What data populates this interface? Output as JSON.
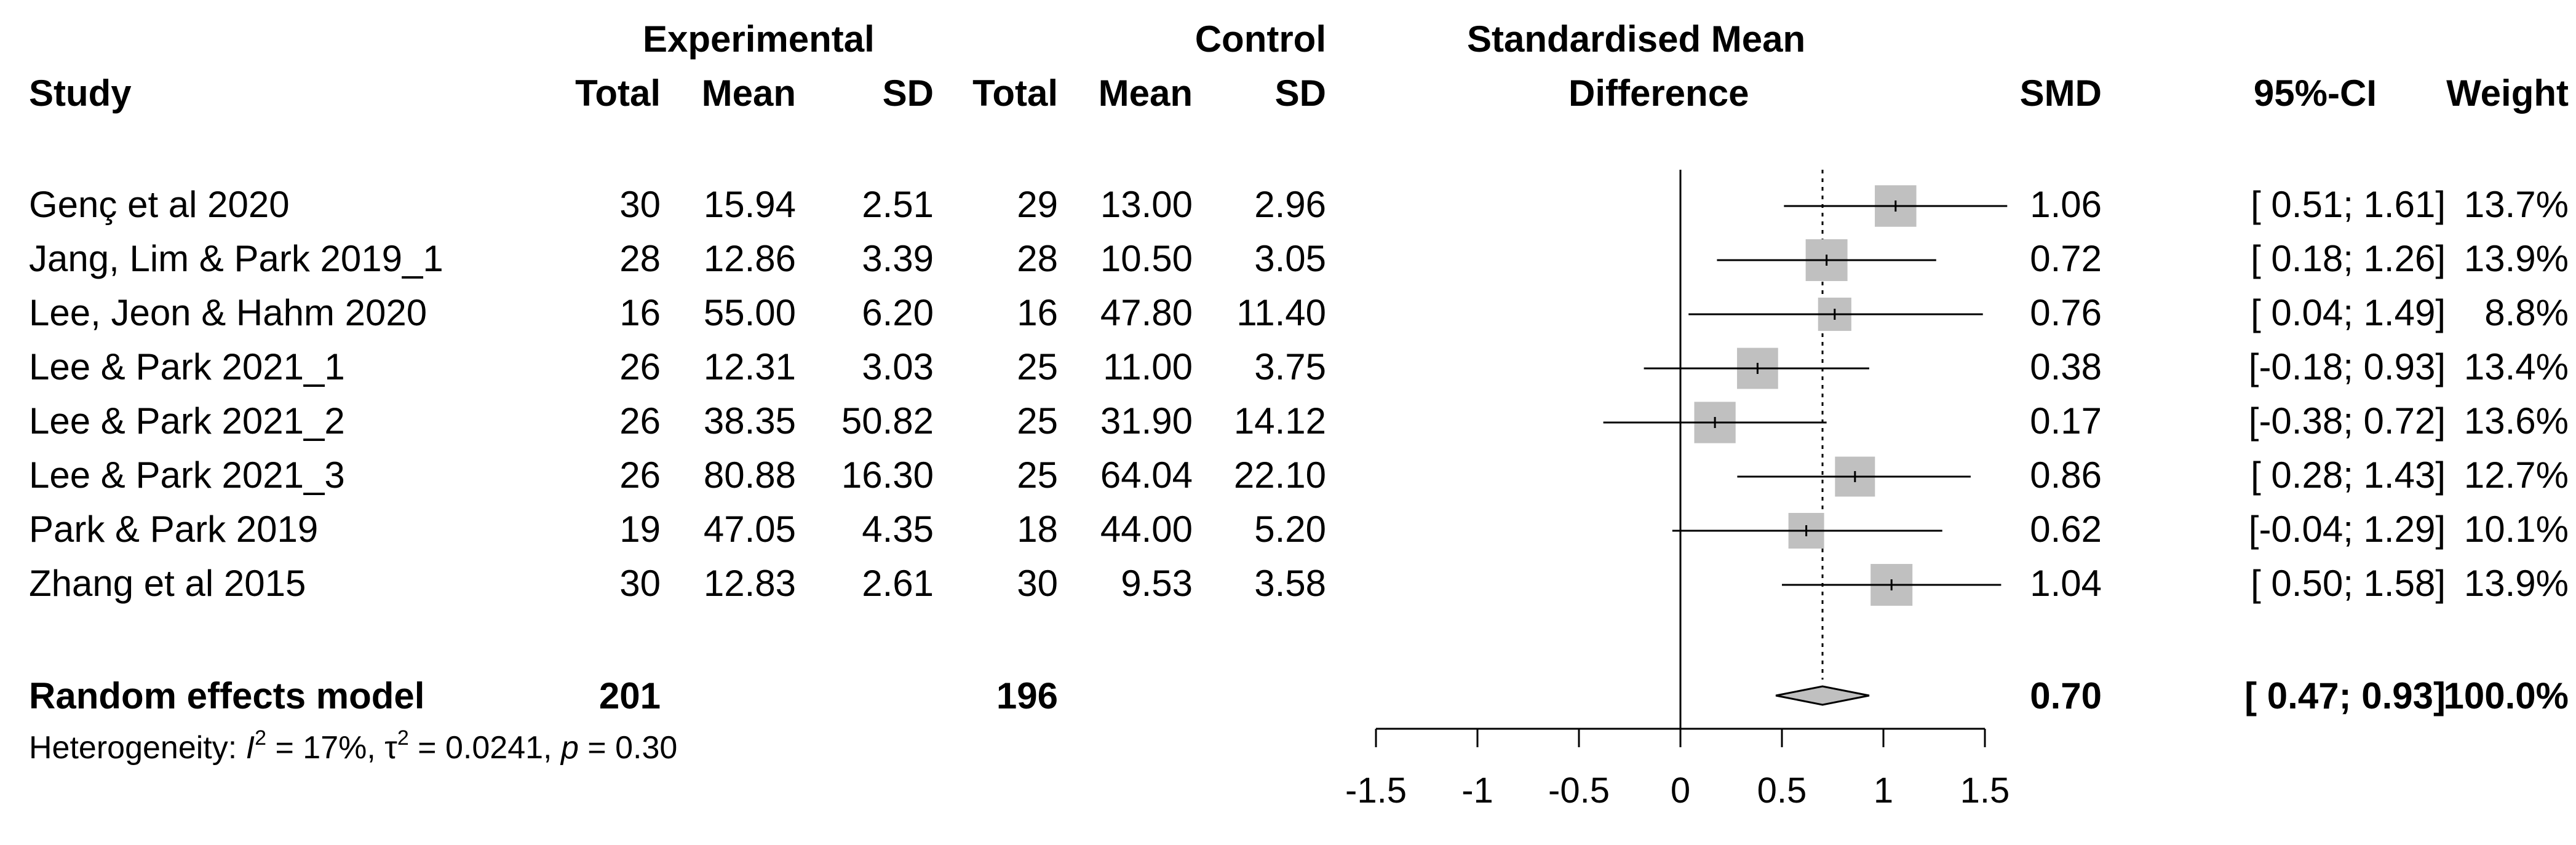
{
  "headers": {
    "experimental": "Experimental",
    "control": "Control",
    "study": "Study",
    "total": "Total",
    "mean": "Mean",
    "sd": "SD",
    "smd_line1": "Standardised Mean",
    "smd_line2": "Difference",
    "smd": "SMD",
    "ci": "95%-CI",
    "weight": "Weight"
  },
  "studies": [
    {
      "name": "Genç et al 2020",
      "e_total": "30",
      "e_mean": "15.94",
      "e_sd": "2.51",
      "c_total": "29",
      "c_mean": "13.00",
      "c_sd": "2.96",
      "smd": "1.06",
      "ci": "[ 0.51; 1.61]",
      "weight": "13.7%"
    },
    {
      "name": "Jang, Lim & Park 2019_1",
      "e_total": "28",
      "e_mean": "12.86",
      "e_sd": "3.39",
      "c_total": "28",
      "c_mean": "10.50",
      "c_sd": "3.05",
      "smd": "0.72",
      "ci": "[ 0.18; 1.26]",
      "weight": "13.9%"
    },
    {
      "name": "Lee, Jeon & Hahm 2020",
      "e_total": "16",
      "e_mean": "55.00",
      "e_sd": "6.20",
      "c_total": "16",
      "c_mean": "47.80",
      "c_sd": "11.40",
      "smd": "0.76",
      "ci": "[ 0.04; 1.49]",
      "weight": "8.8%"
    },
    {
      "name": "Lee & Park 2021_1",
      "e_total": "26",
      "e_mean": "12.31",
      "e_sd": "3.03",
      "c_total": "25",
      "c_mean": "11.00",
      "c_sd": "3.75",
      "smd": "0.38",
      "ci": "[-0.18; 0.93]",
      "weight": "13.4%"
    },
    {
      "name": "Lee & Park 2021_2",
      "e_total": "26",
      "e_mean": "38.35",
      "e_sd": "50.82",
      "c_total": "25",
      "c_mean": "31.90",
      "c_sd": "14.12",
      "smd": "0.17",
      "ci": "[-0.38; 0.72]",
      "weight": "13.6%"
    },
    {
      "name": "Lee & Park 2021_3",
      "e_total": "26",
      "e_mean": "80.88",
      "e_sd": "16.30",
      "c_total": "25",
      "c_mean": "64.04",
      "c_sd": "22.10",
      "smd": "0.86",
      "ci": "[ 0.28; 1.43]",
      "weight": "12.7%"
    },
    {
      "name": "Park & Park 2019",
      "e_total": "19",
      "e_mean": "47.05",
      "e_sd": "4.35",
      "c_total": "18",
      "c_mean": "44.00",
      "c_sd": "5.20",
      "smd": "0.62",
      "ci": "[-0.04; 1.29]",
      "weight": "10.1%"
    },
    {
      "name": "Zhang et al 2015",
      "e_total": "30",
      "e_mean": "12.83",
      "e_sd": "2.61",
      "c_total": "30",
      "c_mean": "9.53",
      "c_sd": "3.58",
      "smd": "1.04",
      "ci": "[ 0.50; 1.58]",
      "weight": "13.9%"
    }
  ],
  "summary": {
    "name": "Random effects model",
    "e_total": "201",
    "c_total": "196",
    "smd": "0.70",
    "ci": "[ 0.47; 0.93]",
    "weight": "100.0%"
  },
  "heterogeneity": {
    "prefix": "Heterogeneity: ",
    "i2_symbol": "I",
    "i2_value": " = 17%, ",
    "tau_symbol": "τ",
    "tau_value": " = 0.0241, ",
    "p_symbol": "p",
    "p_value": " = 0.30",
    "sup": "2"
  },
  "chart_data": {
    "type": "forest",
    "xlim": [
      -1.5,
      1.5
    ],
    "xticks": [
      "-1.5",
      "-1",
      "-0.5",
      "0",
      "0.5",
      "1",
      "1.5"
    ],
    "null_line": 0,
    "summary_line": 0.7,
    "points": [
      {
        "est": 1.06,
        "lo": 0.51,
        "hi": 1.61,
        "w": 13.7
      },
      {
        "est": 0.72,
        "lo": 0.18,
        "hi": 1.26,
        "w": 13.9
      },
      {
        "est": 0.76,
        "lo": 0.04,
        "hi": 1.49,
        "w": 8.8
      },
      {
        "est": 0.38,
        "lo": -0.18,
        "hi": 0.93,
        "w": 13.4
      },
      {
        "est": 0.17,
        "lo": -0.38,
        "hi": 0.72,
        "w": 13.6
      },
      {
        "est": 0.86,
        "lo": 0.28,
        "hi": 1.43,
        "w": 12.7
      },
      {
        "est": 0.62,
        "lo": -0.04,
        "hi": 1.29,
        "w": 10.1
      },
      {
        "est": 1.04,
        "lo": 0.5,
        "hi": 1.58,
        "w": 13.9
      }
    ],
    "diamond": {
      "est": 0.7,
      "lo": 0.47,
      "hi": 0.93
    }
  }
}
